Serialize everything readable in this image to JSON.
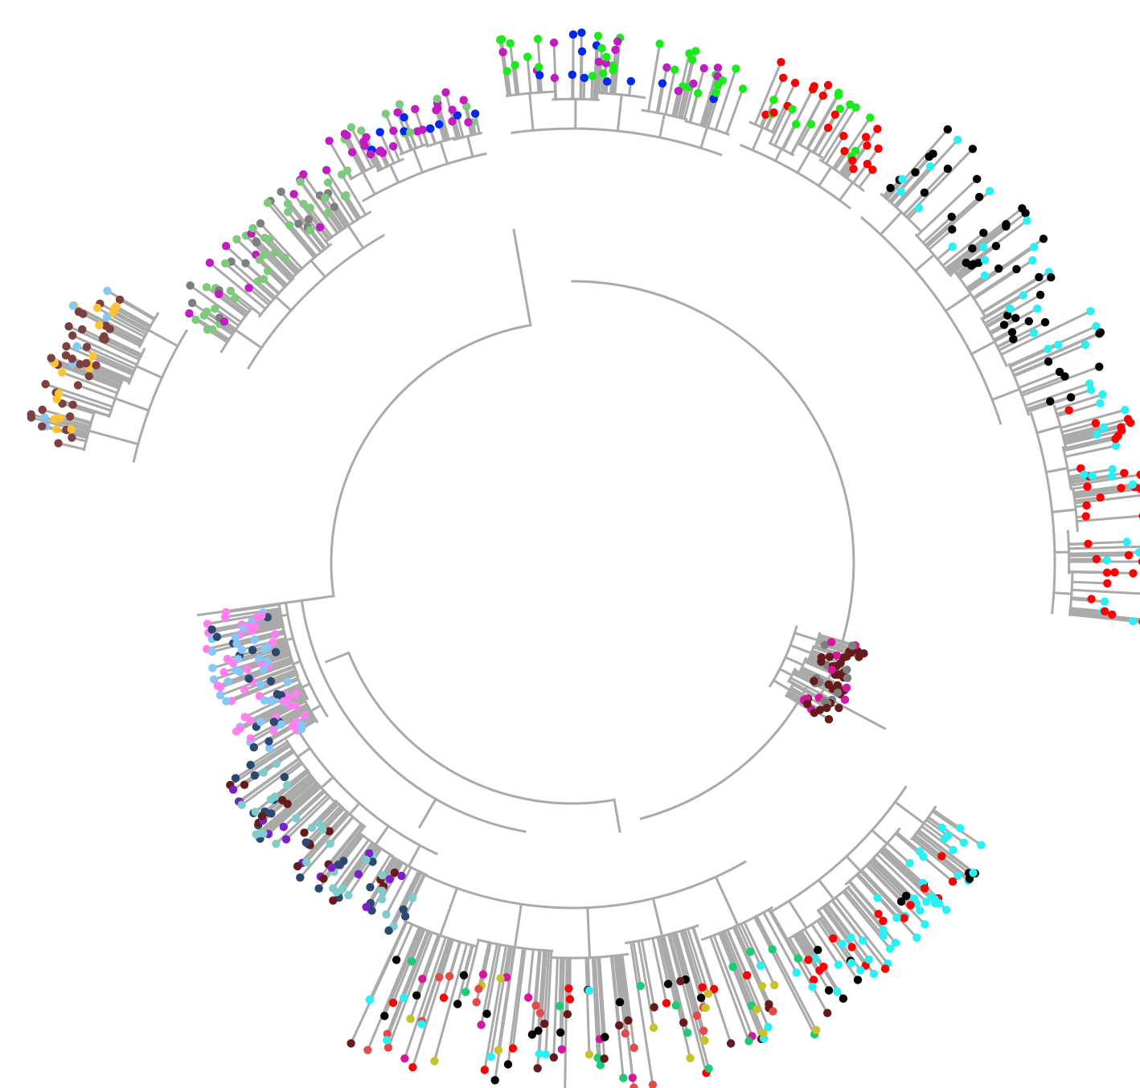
{
  "figure": {
    "kind": "circular-phylogenetic-tree",
    "branch_color": "#aaaaaa",
    "tip_palette": {
      "brown": "#7b4040",
      "orange": "#ffc336",
      "light-blue": "#87c7f6",
      "grey": "#7f7f7f",
      "light-green": "#7fc97f",
      "magenta": "#c21bc4",
      "blue": "#0029f0",
      "green": "#1aeb1a",
      "red": "#ff0000",
      "black": "#000000",
      "cyan": "#29f0f4",
      "dark-red": "#661a1a",
      "pink": "#ff80ee",
      "navy": "#2a4870",
      "teal": "#7ecccc",
      "purple": "#7d20c8",
      "hot-pink": "#d6179d",
      "sea-green": "#1acc73",
      "olive": "#c8c22a",
      "coral-red": "#e34a4a"
    },
    "clades": [
      {
        "id": "left-brown-clade",
        "colors": [
          "brown",
          "orange",
          "light-blue"
        ]
      },
      {
        "id": "upper-left-green-clade",
        "colors": [
          "light-green",
          "grey",
          "magenta"
        ]
      },
      {
        "id": "top-magenta-clade",
        "colors": [
          "magenta",
          "blue"
        ]
      },
      {
        "id": "top-green-clade",
        "colors": [
          "green",
          "blue",
          "magenta"
        ]
      },
      {
        "id": "top-right-red-clade",
        "colors": [
          "red",
          "green"
        ]
      },
      {
        "id": "right-black-cyan-clade",
        "colors": [
          "black",
          "cyan",
          "red"
        ]
      },
      {
        "id": "right-darkred-clade",
        "colors": [
          "dark-red",
          "grey",
          "hot-pink"
        ]
      },
      {
        "id": "lower-right-cyan-black-clade",
        "colors": [
          "cyan",
          "black",
          "red"
        ]
      },
      {
        "id": "bottom-mixed-clade",
        "colors": [
          "olive",
          "coral-red",
          "cyan",
          "black",
          "red",
          "sea-green",
          "hot-pink",
          "dark-red"
        ]
      },
      {
        "id": "lower-left-purple-teal-clade",
        "colors": [
          "purple",
          "teal",
          "navy",
          "dark-red"
        ]
      },
      {
        "id": "left-pink-navy-clade",
        "colors": [
          "pink",
          "navy",
          "light-blue"
        ]
      }
    ]
  }
}
